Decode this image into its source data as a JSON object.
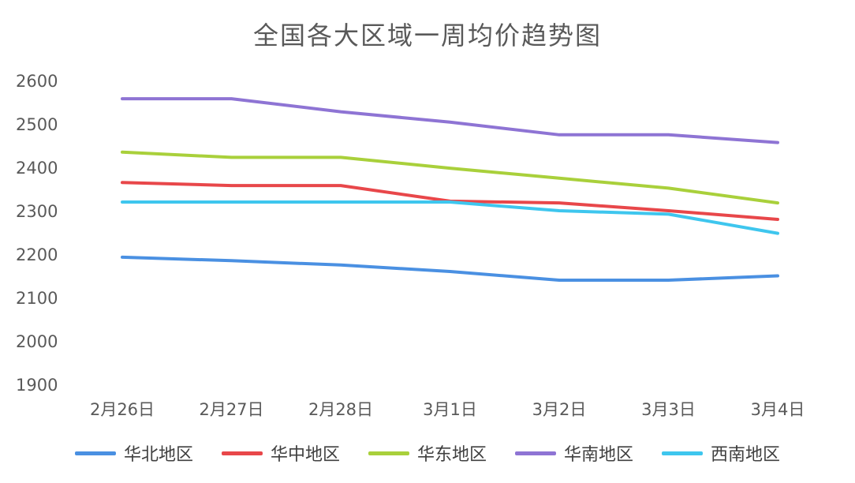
{
  "chart_data": {
    "type": "line",
    "title": "全国各大区域一周均价趋势图",
    "xlabel": "",
    "ylabel": "",
    "categories": [
      "2月26日",
      "2月27日",
      "2月28日",
      "3月1日",
      "3月2日",
      "3月3日",
      "3月4日"
    ],
    "ylim": [
      1900,
      2600
    ],
    "yticks": [
      1900,
      2000,
      2100,
      2200,
      2300,
      2400,
      2500,
      2600
    ],
    "grid": false,
    "legend_position": "bottom",
    "series": [
      {
        "name": "华北地区",
        "color": "#4a90e2",
        "values": [
          2193,
          2185,
          2175,
          2160,
          2140,
          2140,
          2150
        ]
      },
      {
        "name": "华中地区",
        "color": "#e8474a",
        "values": [
          2365,
          2358,
          2358,
          2322,
          2318,
          2300,
          2280
        ]
      },
      {
        "name": "华东地区",
        "color": "#a9d03b",
        "values": [
          2435,
          2423,
          2423,
          2398,
          2375,
          2352,
          2318
        ]
      },
      {
        "name": "华南地区",
        "color": "#8e74d4",
        "values": [
          2558,
          2558,
          2528,
          2504,
          2475,
          2475,
          2457
        ]
      },
      {
        "name": "西南地区",
        "color": "#3ec6ee",
        "values": [
          2320,
          2320,
          2320,
          2320,
          2300,
          2292,
          2248
        ]
      }
    ]
  }
}
